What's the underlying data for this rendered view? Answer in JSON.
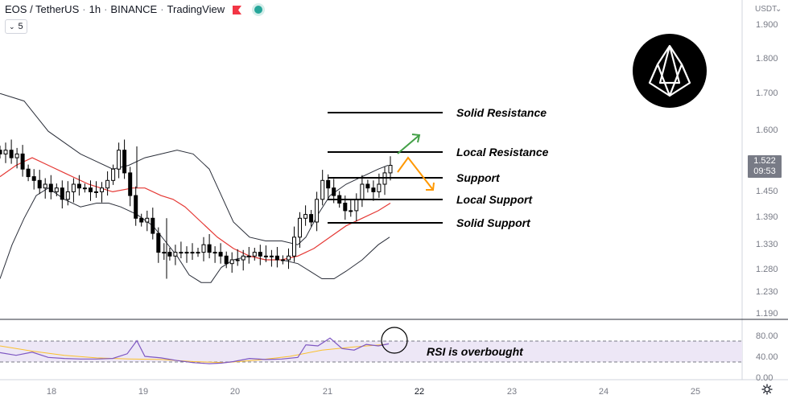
{
  "header": {
    "symbol": "EOS / TetherUS",
    "interval": "1h",
    "exchange": "BINANCE",
    "platform": "TradingView",
    "interval_box": "5",
    "flag_color": "#f23645",
    "live_color": "#26a69a"
  },
  "price_axis": {
    "unit": "USDT",
    "ticks": [
      "1.900",
      "1.800",
      "1.700",
      "1.600",
      "1.450",
      "1.390",
      "1.330",
      "1.280",
      "1.230",
      "1.190"
    ]
  },
  "rsi_axis": {
    "ticks": [
      "80.00",
      "40.00",
      "0.00"
    ]
  },
  "time_axis": {
    "ticks": [
      "18",
      "19",
      "20",
      "21",
      "22",
      "23",
      "24",
      "25"
    ]
  },
  "current_price": {
    "price": "1.522",
    "countdown": "09:53"
  },
  "annotations": {
    "solid_resistance": "Solid Resistance",
    "local_resistance": "Local Resistance",
    "support": "Support",
    "local_support": "Local Support",
    "solid_support": "Solid Support",
    "rsi_note": "RSI is overbought"
  },
  "levels": {
    "solid_resistance": 1.655,
    "local_resistance": 1.548,
    "support": 1.497,
    "local_support": 1.435,
    "solid_support": 1.378
  },
  "colors": {
    "up_arrow": "#43a047",
    "down_arrow": "#ff9800",
    "ma": "#e53935",
    "bands": "#2a2e39",
    "rsi_line": "#7e57c2",
    "rsi_ma": "#fbc02d",
    "rsi_band_fill": "#ede7f6"
  },
  "logo": {
    "name": "eos-logo"
  },
  "chart_data": {
    "type": "candlestick",
    "indicators": [
      "Bollinger Bands",
      "Moving Average",
      "RSI"
    ],
    "x_time_range": [
      "17 (late)",
      "22 (early)"
    ],
    "ylim": [
      1.17,
      1.94
    ],
    "price_path": [
      1.56,
      1.57,
      1.55,
      1.56,
      1.52,
      1.5,
      1.49,
      1.47,
      1.48,
      1.46,
      1.47,
      1.44,
      1.46,
      1.48,
      1.47,
      1.47,
      1.46,
      1.46,
      1.47,
      1.49,
      1.52,
      1.57,
      1.51,
      1.45,
      1.39,
      1.38,
      1.39,
      1.35,
      1.3,
      1.3,
      1.29,
      1.3,
      1.3,
      1.3,
      1.3,
      1.3,
      1.32,
      1.3,
      1.3,
      1.29,
      1.27,
      1.28,
      1.28,
      1.29,
      1.29,
      1.3,
      1.29,
      1.29,
      1.29,
      1.28,
      1.28,
      1.29,
      1.34,
      1.39,
      1.4,
      1.38,
      1.44,
      1.49,
      1.47,
      1.45,
      1.43,
      1.41,
      1.41,
      1.44,
      1.48,
      1.47,
      1.46,
      1.48,
      1.51,
      1.53
    ],
    "ma_points": [
      [
        0,
        1.5
      ],
      [
        20,
        1.53
      ],
      [
        40,
        1.55
      ],
      [
        60,
        1.53
      ],
      [
        80,
        1.51
      ],
      [
        110,
        1.48
      ],
      [
        140,
        1.46
      ],
      [
        165,
        1.47
      ],
      [
        180,
        1.47
      ],
      [
        200,
        1.45
      ],
      [
        215,
        1.44
      ],
      [
        230,
        1.42
      ],
      [
        250,
        1.38
      ],
      [
        270,
        1.34
      ],
      [
        290,
        1.31
      ],
      [
        310,
        1.29
      ],
      [
        330,
        1.28
      ],
      [
        350,
        1.28
      ],
      [
        370,
        1.29
      ],
      [
        390,
        1.31
      ],
      [
        410,
        1.34
      ],
      [
        430,
        1.37
      ],
      [
        450,
        1.39
      ],
      [
        470,
        1.41
      ],
      [
        485,
        1.43
      ]
    ],
    "bb_upper": [
      [
        0,
        1.72
      ],
      [
        15,
        1.71
      ],
      [
        30,
        1.7
      ],
      [
        45,
        1.66
      ],
      [
        60,
        1.62
      ],
      [
        80,
        1.59
      ],
      [
        100,
        1.56
      ],
      [
        120,
        1.54
      ],
      [
        140,
        1.52
      ],
      [
        160,
        1.53
      ],
      [
        180,
        1.55
      ],
      [
        200,
        1.56
      ],
      [
        220,
        1.57
      ],
      [
        240,
        1.56
      ],
      [
        260,
        1.52
      ],
      [
        275,
        1.45
      ],
      [
        290,
        1.38
      ],
      [
        310,
        1.34
      ],
      [
        330,
        1.33
      ],
      [
        350,
        1.33
      ],
      [
        370,
        1.32
      ],
      [
        380,
        1.34
      ],
      [
        395,
        1.4
      ],
      [
        410,
        1.45
      ],
      [
        430,
        1.48
      ],
      [
        450,
        1.5
      ],
      [
        470,
        1.52
      ],
      [
        482,
        1.53
      ]
    ],
    "bb_lower": [
      [
        0,
        1.23
      ],
      [
        15,
        1.32
      ],
      [
        30,
        1.39
      ],
      [
        45,
        1.45
      ],
      [
        60,
        1.47
      ],
      [
        80,
        1.44
      ],
      [
        100,
        1.42
      ],
      [
        120,
        1.43
      ],
      [
        135,
        1.43
      ],
      [
        150,
        1.42
      ],
      [
        170,
        1.4
      ],
      [
        190,
        1.37
      ],
      [
        205,
        1.33
      ],
      [
        220,
        1.29
      ],
      [
        235,
        1.24
      ],
      [
        250,
        1.22
      ],
      [
        262,
        1.22
      ],
      [
        275,
        1.26
      ],
      [
        290,
        1.28
      ],
      [
        310,
        1.29
      ],
      [
        330,
        1.28
      ],
      [
        350,
        1.28
      ],
      [
        370,
        1.27
      ],
      [
        385,
        1.25
      ],
      [
        400,
        1.23
      ],
      [
        415,
        1.23
      ],
      [
        430,
        1.25
      ],
      [
        450,
        1.28
      ],
      [
        470,
        1.32
      ],
      [
        484,
        1.34
      ]
    ],
    "rsi_values": [
      [
        0,
        47
      ],
      [
        20,
        42
      ],
      [
        40,
        48
      ],
      [
        60,
        38
      ],
      [
        80,
        36
      ],
      [
        100,
        35
      ],
      [
        120,
        35
      ],
      [
        140,
        36
      ],
      [
        158,
        45
      ],
      [
        170,
        70
      ],
      [
        180,
        40
      ],
      [
        200,
        37
      ],
      [
        220,
        32
      ],
      [
        240,
        28
      ],
      [
        260,
        26
      ],
      [
        275,
        27
      ],
      [
        290,
        30
      ],
      [
        310,
        36
      ],
      [
        330,
        34
      ],
      [
        350,
        35
      ],
      [
        370,
        38
      ],
      [
        380,
        62
      ],
      [
        395,
        60
      ],
      [
        410,
        75
      ],
      [
        425,
        55
      ],
      [
        440,
        52
      ],
      [
        455,
        63
      ],
      [
        470,
        60
      ],
      [
        483,
        64
      ]
    ],
    "rsi_ma": [
      [
        0,
        60
      ],
      [
        40,
        50
      ],
      [
        80,
        42
      ],
      [
        120,
        37
      ],
      [
        160,
        35
      ],
      [
        200,
        34
      ],
      [
        240,
        30
      ],
      [
        280,
        28
      ],
      [
        320,
        33
      ],
      [
        360,
        40
      ],
      [
        400,
        52
      ],
      [
        440,
        58
      ],
      [
        480,
        63
      ]
    ],
    "rsi_levels": [
      70,
      30
    ]
  }
}
